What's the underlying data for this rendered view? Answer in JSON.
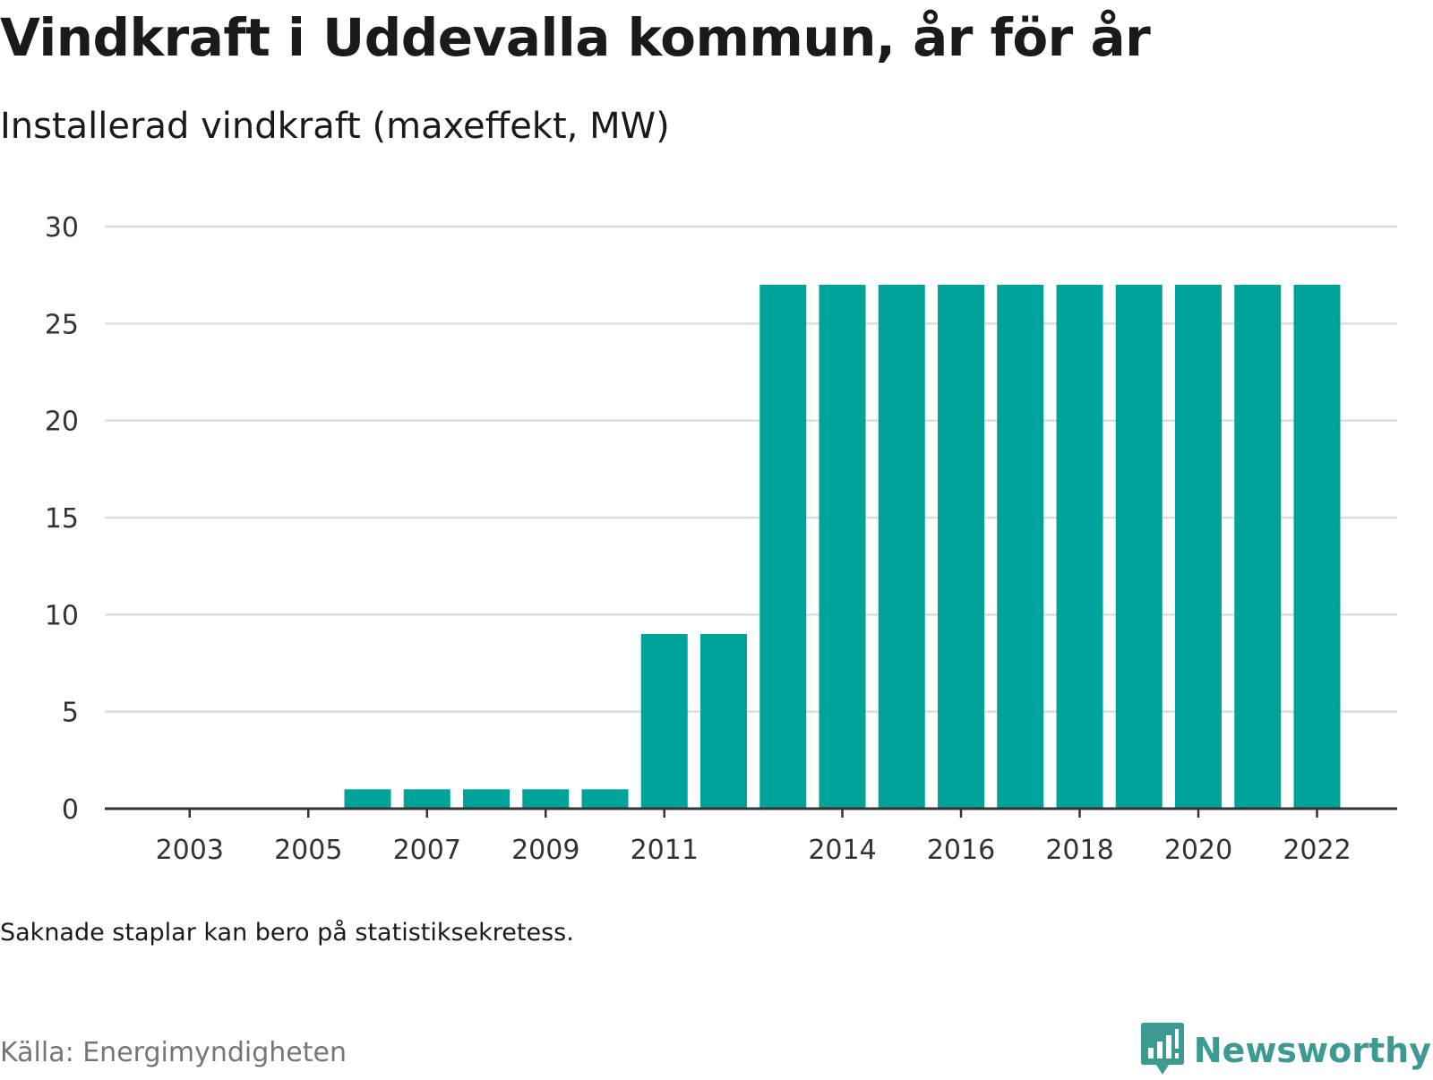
{
  "title": "Vindkraft i Uddevalla kommun, år för år",
  "subtitle": "Installerad vindkraft (maxeffekt, MW)",
  "note": "Saknade staplar kan bero på statistiksekretess.",
  "source": "Källa: Energimyndigheten",
  "brand": {
    "name": "Newsworthy",
    "logo_icon": "bar-chart-speech-bubble-icon"
  },
  "colors": {
    "bar": "#00a39a",
    "grid": "#dddddd",
    "axis": "#333333",
    "brand": "#3d9a92"
  },
  "chart_data": {
    "type": "bar",
    "title": "Vindkraft i Uddevalla kommun, år för år",
    "subtitle": "Installerad vindkraft (maxeffekt, MW)",
    "xlabel": "",
    "ylabel": "",
    "ylim": [
      0,
      30
    ],
    "yticks": [
      0,
      5,
      10,
      15,
      20,
      25,
      30
    ],
    "xtick_labels": [
      "2003",
      "2005",
      "2007",
      "2009",
      "2011",
      "2014",
      "2016",
      "2018",
      "2020",
      "2022"
    ],
    "grid": true,
    "categories": [
      "2002",
      "2003",
      "2004",
      "2005",
      "2006",
      "2007",
      "2008",
      "2009",
      "2010",
      "2011",
      "2012",
      "2013",
      "2014",
      "2015",
      "2016",
      "2017",
      "2018",
      "2019",
      "2020",
      "2021",
      "2022"
    ],
    "values": [
      0,
      0,
      0,
      0,
      1,
      1,
      1,
      1,
      1,
      9,
      9,
      27,
      27,
      27,
      27,
      27,
      27,
      27,
      27,
      27,
      27
    ]
  }
}
